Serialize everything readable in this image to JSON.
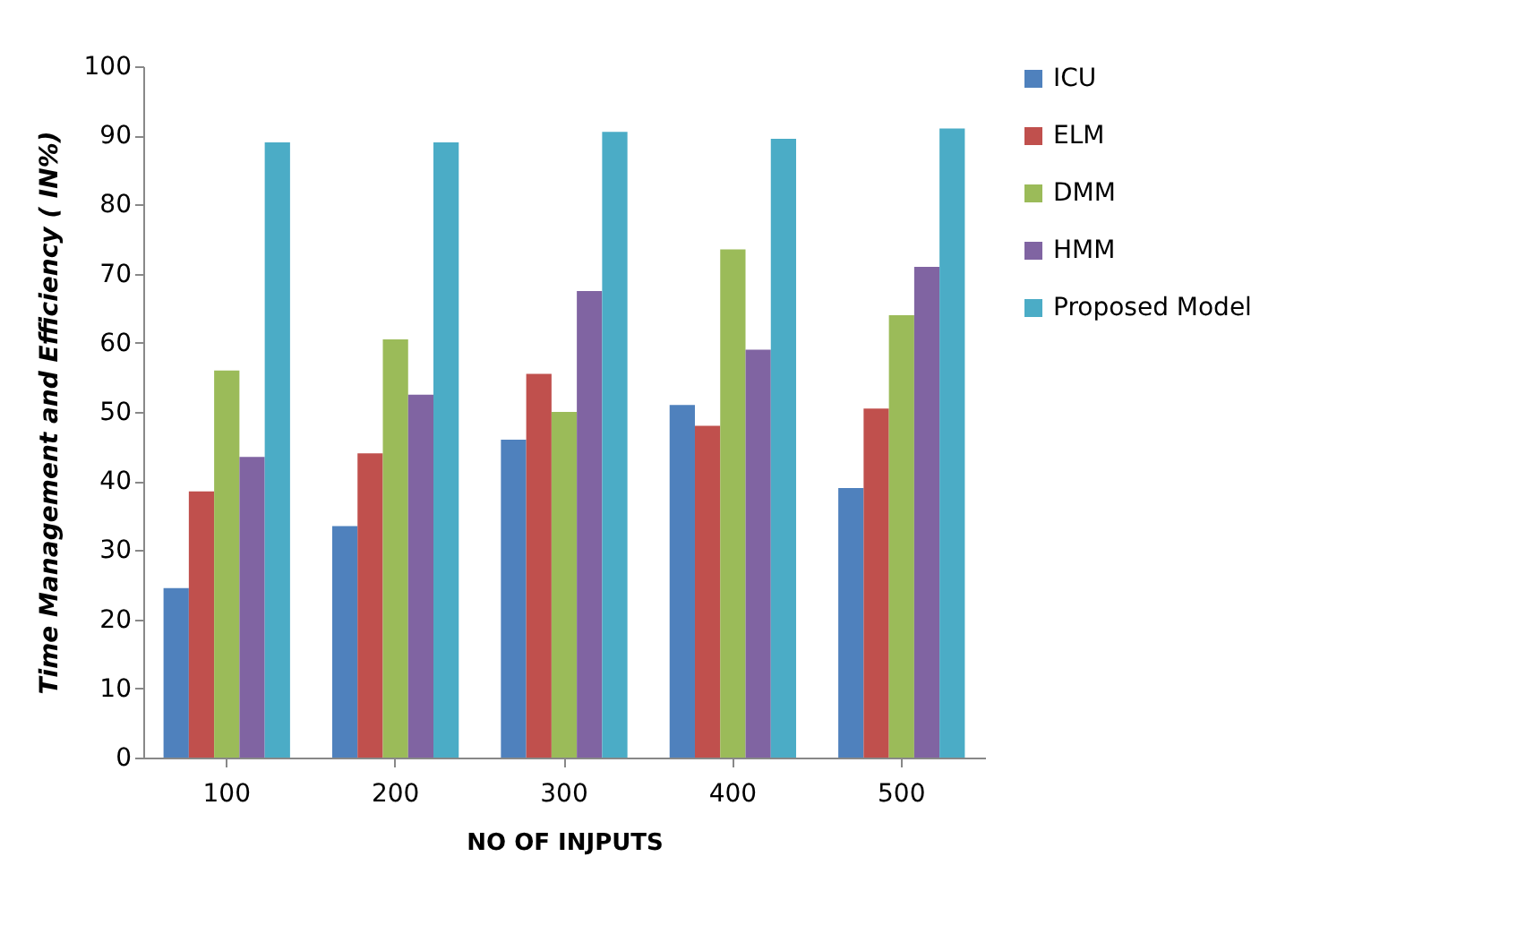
{
  "chart_data": {
    "type": "bar",
    "xlabel": "NO OF INJPUTS",
    "ylabel": "Time Management and Efficiency ( IN%)",
    "categories": [
      "100",
      "200",
      "300",
      "400",
      "500"
    ],
    "series": [
      {
        "name": "ICU",
        "color": "#4f81bd",
        "values": [
          24.5,
          33.5,
          46,
          51,
          39
        ]
      },
      {
        "name": "ELM",
        "color": "#c0504d",
        "values": [
          38.5,
          44,
          55.5,
          48,
          50.5
        ]
      },
      {
        "name": "DMM",
        "color": "#9bbb59",
        "values": [
          56,
          60.5,
          50,
          73.5,
          64
        ]
      },
      {
        "name": "HMM",
        "color": "#8064a2",
        "values": [
          43.5,
          52.5,
          67.5,
          59,
          71
        ]
      },
      {
        "name": "Proposed Model",
        "color": "#4bacc6",
        "values": [
          89,
          89,
          90.5,
          89.5,
          91
        ]
      }
    ],
    "ylim": [
      0,
      100
    ],
    "yticks": [
      0,
      10,
      20,
      30,
      40,
      50,
      60,
      70,
      80,
      90,
      100
    ],
    "grid": false,
    "legend": "right"
  }
}
